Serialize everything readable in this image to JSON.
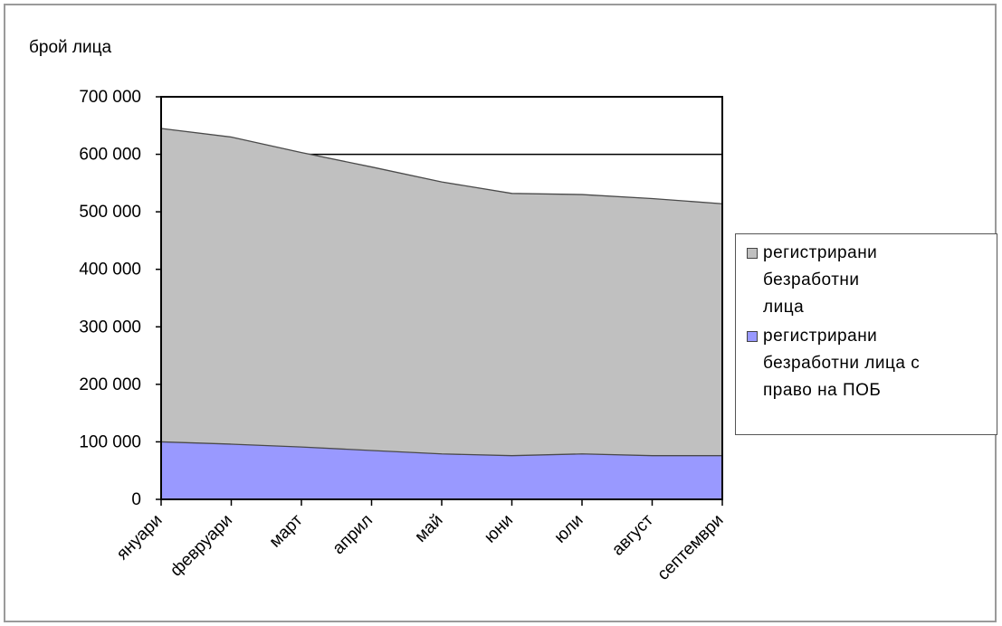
{
  "chart_data": {
    "type": "area",
    "stacked": true,
    "ylabel": "брой лица",
    "xlabel": "",
    "categories": [
      "януари",
      "февруари",
      "март",
      "април",
      "май",
      "юни",
      "юли",
      "август",
      "септември"
    ],
    "ylim": [
      0,
      700000
    ],
    "yticks": [
      0,
      100000,
      200000,
      300000,
      400000,
      500000,
      600000,
      700000
    ],
    "ytick_labels": [
      "0",
      "100 000",
      "200 000",
      "300 000",
      "400 000",
      "500 000",
      "600 000",
      "700 000"
    ],
    "gridlines": [
      600000
    ],
    "series": [
      {
        "name_lines": [
          "регистрирани",
          "безработни",
          "лица"
        ],
        "values": [
          645000,
          630000,
          603000,
          578000,
          552000,
          532000,
          530000,
          523000,
          514000
        ],
        "color": "#c0c0c0"
      },
      {
        "name_lines": [
          "регистрирани",
          "безработни лица с",
          "право на ПОБ"
        ],
        "values": [
          100000,
          96000,
          91000,
          85000,
          79000,
          76000,
          79000,
          76000,
          76000
        ],
        "color": "#9999ff"
      }
    ],
    "legend_position": "right"
  }
}
